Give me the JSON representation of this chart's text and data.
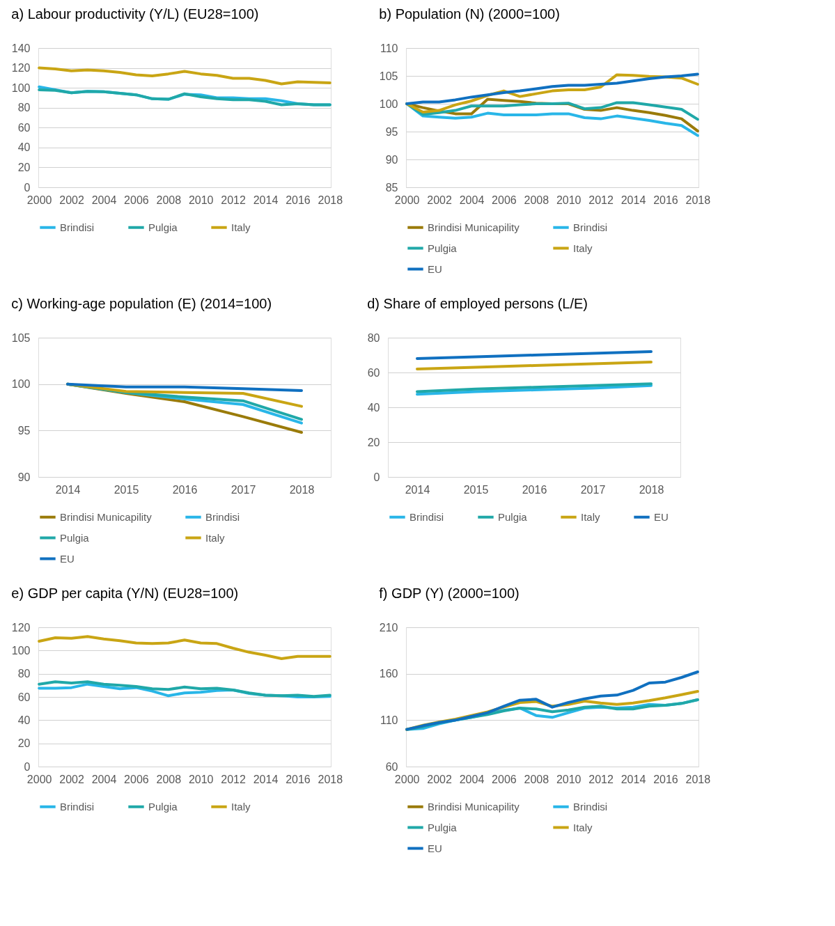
{
  "chart_data": [
    {
      "type": "line",
      "title": "a) Labour productivity (Y/L) (EU28=100)",
      "categories": [
        "2000",
        null,
        "2002",
        null,
        "2004",
        null,
        "2006",
        null,
        "2008",
        null,
        "2010",
        null,
        "2012",
        null,
        "2014",
        null,
        "2016",
        null,
        "2018"
      ],
      "ylim": [
        0,
        140
      ],
      "yticks": [
        0,
        20,
        40,
        60,
        80,
        100,
        120,
        140
      ],
      "grid": "y",
      "legend": "bottom",
      "series": [
        {
          "name": "Brindisi",
          "color": "#29b6e8",
          "values": [
            101,
            98,
            95,
            96.5,
            96,
            94.5,
            93,
            89,
            88.5,
            93.5,
            93,
            90,
            90,
            89,
            89,
            87,
            84,
            83,
            83
          ]
        },
        {
          "name": "Pulgia",
          "color": "#20a8a8",
          "values": [
            98,
            97.5,
            95,
            96.5,
            96,
            94.5,
            93,
            89,
            88.5,
            94,
            91,
            89,
            88,
            88,
            86.5,
            83,
            84,
            83,
            83
          ]
        },
        {
          "name": "Italy",
          "color": "#c9a514",
          "values": [
            120,
            119,
            117,
            118,
            117,
            115.5,
            113,
            112,
            114,
            116.5,
            114,
            112.5,
            109.5,
            109.5,
            107.5,
            104,
            106,
            105.5,
            105
          ]
        }
      ]
    },
    {
      "type": "line",
      "title": "b) Population (N) (2000=100)",
      "categories": [
        "2000",
        null,
        "2002",
        null,
        "2004",
        null,
        "2006",
        null,
        "2008",
        null,
        "2010",
        null,
        "2012",
        null,
        "2014",
        null,
        "2016",
        null,
        "2018"
      ],
      "ylim": [
        85,
        110
      ],
      "yticks": [
        85,
        90,
        95,
        100,
        105,
        110
      ],
      "grid": "y",
      "legend": "bottom",
      "series": [
        {
          "name": "Brindisi Municapility",
          "color": "#9a7b0a",
          "values": [
            100,
            99.3,
            98.7,
            98.2,
            98.2,
            100.8,
            100.6,
            100.4,
            100.1,
            100,
            100,
            99,
            98.8,
            99.3,
            98.8,
            98.4,
            97.9,
            97.3,
            95.1
          ]
        },
        {
          "name": "Brindisi",
          "color": "#29b6e8",
          "values": [
            100,
            97.8,
            97.6,
            97.4,
            97.6,
            98.3,
            98,
            98,
            98,
            98.2,
            98.2,
            97.5,
            97.3,
            97.8,
            97.4,
            97,
            96.5,
            96.1,
            94.3
          ]
        },
        {
          "name": "Pulgia",
          "color": "#20a8a8",
          "values": [
            100,
            98.1,
            98.4,
            98.8,
            99.6,
            99.6,
            99.6,
            99.8,
            100,
            100,
            100.1,
            99.1,
            99.3,
            100.2,
            100.2,
            99.8,
            99.4,
            99,
            97.2
          ]
        },
        {
          "name": "Italy",
          "color": "#c9a514",
          "values": [
            100,
            98.5,
            98.8,
            99.8,
            100.5,
            101.5,
            102.3,
            101.3,
            101.8,
            102.3,
            102.5,
            102.5,
            103,
            105.2,
            105.1,
            104.9,
            104.8,
            104.6,
            103.5
          ]
        },
        {
          "name": "EU",
          "color": "#1070c0",
          "values": [
            100,
            100.3,
            100.3,
            100.7,
            101.2,
            101.6,
            102,
            102.3,
            102.7,
            103.1,
            103.3,
            103.3,
            103.5,
            103.7,
            104.1,
            104.5,
            104.8,
            105,
            105.3
          ]
        }
      ]
    },
    {
      "type": "line",
      "title": "c) Working-age population (E) (2014=100)",
      "categories": [
        "2014",
        "2015",
        "2016",
        "2017",
        "2018"
      ],
      "ylim": [
        90,
        105
      ],
      "yticks": [
        90,
        95,
        100,
        105
      ],
      "grid": "y",
      "legend": "bottom",
      "series": [
        {
          "name": "Brindisi Municapility",
          "color": "#9a7b0a",
          "values": [
            100,
            99,
            98.1,
            96.5,
            94.8
          ]
        },
        {
          "name": "Brindisi",
          "color": "#29b6e8",
          "values": [
            100,
            99.1,
            98.4,
            97.8,
            95.8
          ]
        },
        {
          "name": "Pulgia",
          "color": "#20a8a8",
          "values": [
            100,
            99.1,
            98.6,
            98.2,
            96.2
          ]
        },
        {
          "name": "Italy",
          "color": "#c9a514",
          "values": [
            100,
            99.2,
            99.1,
            99,
            97.6
          ]
        },
        {
          "name": "EU",
          "color": "#1070c0",
          "values": [
            100,
            99.7,
            99.7,
            99.5,
            99.3
          ]
        }
      ]
    },
    {
      "type": "line",
      "title": "d) Share of employed persons (L/E)",
      "categories": [
        "2014",
        "2015",
        "2016",
        "2017",
        "2018"
      ],
      "ylim": [
        0,
        80
      ],
      "yticks": [
        0,
        20,
        40,
        60,
        80
      ],
      "grid": "y",
      "legend": "bottom",
      "series": [
        {
          "name": "Brindisi",
          "color": "#29b6e8",
          "values": [
            47.5,
            49,
            50,
            51,
            52.5
          ]
        },
        {
          "name": "Pulgia",
          "color": "#20a8a8",
          "values": [
            49,
            50.5,
            51.5,
            52.5,
            53.5
          ]
        },
        {
          "name": "Italy",
          "color": "#c9a514",
          "values": [
            62,
            63,
            64,
            65,
            66
          ]
        },
        {
          "name": "EU",
          "color": "#1070c0",
          "values": [
            68,
            69,
            70,
            71,
            72
          ]
        }
      ]
    },
    {
      "type": "line",
      "title": "e) GDP per capita (Y/N) (EU28=100)",
      "categories": [
        "2000",
        null,
        "2002",
        null,
        "2004",
        null,
        "2006",
        null,
        "2008",
        null,
        "2010",
        null,
        "2012",
        null,
        "2014",
        null,
        "2016",
        null,
        "2018"
      ],
      "ylim": [
        0,
        120
      ],
      "yticks": [
        0,
        20,
        40,
        60,
        80,
        100,
        120
      ],
      "grid": "y",
      "legend": "bottom",
      "series": [
        {
          "name": "Brindisi",
          "color": "#29b6e8",
          "values": [
            67.5,
            67.5,
            68,
            71,
            69,
            67,
            68,
            65,
            61,
            63.5,
            64,
            65.5,
            66,
            63,
            61.5,
            61,
            60,
            60,
            60.5
          ]
        },
        {
          "name": "Pulgia",
          "color": "#20a8a8",
          "values": [
            71,
            73,
            72,
            73,
            71,
            70,
            69,
            67,
            66.5,
            68.5,
            67,
            67.5,
            66,
            63.5,
            61.5,
            61,
            61.5,
            60.5,
            61.5
          ]
        },
        {
          "name": "Italy",
          "color": "#c9a514",
          "values": [
            108,
            111,
            110.5,
            112,
            110,
            108.5,
            106.5,
            106,
            106.5,
            109,
            106.5,
            106,
            102,
            98.5,
            96,
            93,
            95,
            95,
            95
          ]
        }
      ]
    },
    {
      "type": "line",
      "title": "f) GDP (Y) (2000=100)",
      "categories": [
        "2000",
        null,
        "2002",
        null,
        "2004",
        null,
        "2006",
        null,
        "2008",
        null,
        "2010",
        null,
        "2012",
        null,
        "2014",
        null,
        "2016",
        null,
        "2018"
      ],
      "ylim": [
        60,
        210
      ],
      "yticks": [
        60,
        110,
        160,
        210
      ],
      "grid": "y",
      "legend": "bottom",
      "series": [
        {
          "name": "Brindisi Municapility",
          "color": "#9a7b0a",
          "values": [
            null,
            null,
            null,
            null,
            null,
            null,
            null,
            null,
            null,
            null,
            null,
            null,
            null,
            null,
            null,
            null,
            null,
            null,
            null
          ]
        },
        {
          "name": "Brindisi",
          "color": "#29b6e8",
          "values": [
            100,
            101,
            106,
            110,
            113,
            117,
            120.5,
            123,
            115,
            113,
            118,
            123,
            124,
            123,
            124,
            127,
            126,
            128,
            132
          ]
        },
        {
          "name": "Pulgia",
          "color": "#20a8a8",
          "values": [
            100,
            103,
            107,
            110,
            113,
            116,
            120,
            123,
            122,
            119,
            121,
            124,
            125,
            122,
            122,
            125,
            126,
            128,
            132
          ]
        },
        {
          "name": "Italy",
          "color": "#c9a514",
          "values": [
            100,
            104.5,
            108,
            111,
            115,
            119,
            124,
            129,
            130,
            125,
            127,
            130.5,
            128.5,
            127,
            128.5,
            131,
            134,
            137.5,
            141
          ]
        },
        {
          "name": "EU",
          "color": "#1070c0",
          "values": [
            100,
            104,
            107.5,
            110,
            114,
            118,
            125,
            131.5,
            132.5,
            124,
            129,
            133,
            136,
            137,
            142,
            150,
            151,
            156,
            162
          ]
        }
      ]
    }
  ]
}
